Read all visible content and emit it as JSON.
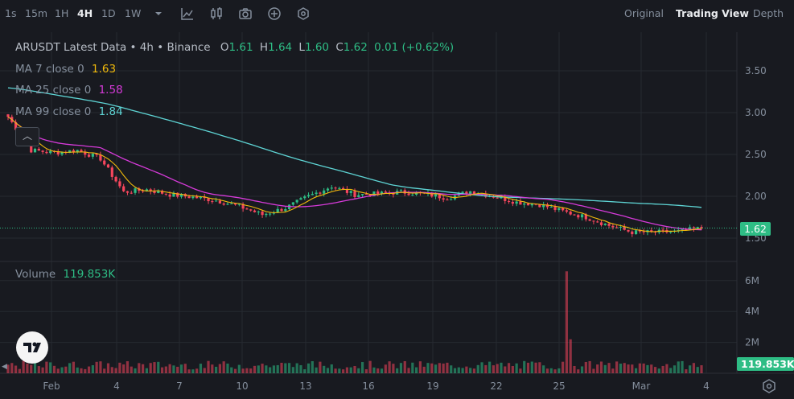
{
  "toolbar": {
    "intervals": [
      "1s",
      "15m",
      "1H",
      "4H",
      "1D",
      "1W"
    ],
    "active_interval": "4H",
    "views": [
      "Original",
      "Trading View",
      "Depth"
    ],
    "active_view": "Trading View"
  },
  "legend": {
    "title": "ARUSDT Latest Data • 4h • Binance",
    "o_label": "O",
    "o": "1.61",
    "h_label": "H",
    "h": "1.64",
    "l_label": "L",
    "l": "1.60",
    "c_label": "C",
    "c": "1.62",
    "change": "0.01 (+0.62%)",
    "ma7_label": "MA 7 close 0",
    "ma7_value": "1.63",
    "ma25_label": "MA 25 close 0",
    "ma25_value": "1.58",
    "ma99_label": "MA 99 close 0",
    "ma99_value": "1.84",
    "collapse_glyph": "︿"
  },
  "volume": {
    "label": "Volume",
    "value": "119.853K",
    "tag": "119.853K"
  },
  "colors": {
    "up": "#2ebd85",
    "down": "#f6465d",
    "ma7": "#f0b90b",
    "ma25": "#d63ad9",
    "ma99": "#5ed4d4",
    "background": "#181a20"
  },
  "chart_data": {
    "type": "candlestick",
    "symbol": "ARUSDT",
    "interval": "4h",
    "exchange": "Binance",
    "price_axis_ticks": [
      "3.50",
      "3.00",
      "2.50",
      "2.00",
      "1.50"
    ],
    "volume_axis_ticks": [
      "6M",
      "4M",
      "2M"
    ],
    "x_tick_labels": [
      "Feb",
      "4",
      "7",
      "10",
      "13",
      "16",
      "19",
      "22",
      "25",
      "Mar",
      "4"
    ],
    "last_price": "1.62",
    "approx_daily_close": [
      {
        "date": "Feb 1",
        "close": 2.95
      },
      {
        "date": "Feb 2",
        "close": 2.55
      },
      {
        "date": "Feb 3",
        "close": 2.52
      },
      {
        "date": "Feb 4",
        "close": 2.55
      },
      {
        "date": "Feb 5",
        "close": 2.45
      },
      {
        "date": "Feb 6",
        "close": 2.05
      },
      {
        "date": "Feb 7",
        "close": 2.08
      },
      {
        "date": "Feb 8",
        "close": 2.02
      },
      {
        "date": "Feb 9",
        "close": 1.99
      },
      {
        "date": "Feb 10",
        "close": 1.95
      },
      {
        "date": "Feb 11",
        "close": 1.88
      },
      {
        "date": "Feb 12",
        "close": 1.78
      },
      {
        "date": "Feb 13",
        "close": 1.86
      },
      {
        "date": "Feb 14",
        "close": 2.0
      },
      {
        "date": "Feb 15",
        "close": 2.12
      },
      {
        "date": "Feb 16",
        "close": 2.02
      },
      {
        "date": "Feb 17",
        "close": 2.03
      },
      {
        "date": "Feb 18",
        "close": 2.05
      },
      {
        "date": "Feb 19",
        "close": 2.03
      },
      {
        "date": "Feb 20",
        "close": 1.98
      },
      {
        "date": "Feb 21",
        "close": 2.06
      },
      {
        "date": "Feb 22",
        "close": 2.0
      },
      {
        "date": "Feb 23",
        "close": 1.93
      },
      {
        "date": "Feb 24",
        "close": 1.9
      },
      {
        "date": "Feb 25",
        "close": 1.82
      },
      {
        "date": "Feb 26",
        "close": 1.75
      },
      {
        "date": "Feb 27",
        "close": 1.65
      },
      {
        "date": "Feb 28",
        "close": 1.57
      },
      {
        "date": "Mar 1",
        "close": 1.57
      },
      {
        "date": "Mar 2",
        "close": 1.58
      },
      {
        "date": "Mar 3",
        "close": 1.62
      }
    ]
  }
}
